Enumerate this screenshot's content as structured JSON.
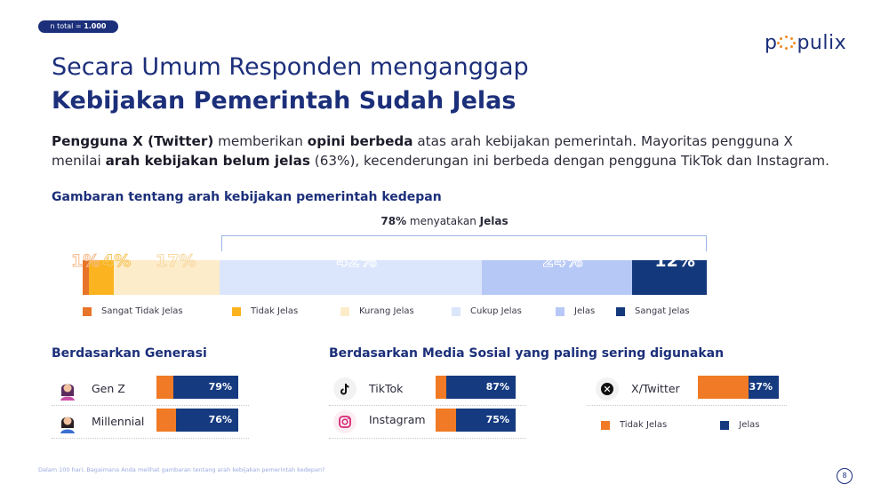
{
  "badge": {
    "prefix": "n total = ",
    "value": "1.000"
  },
  "logo": {
    "left": "p",
    "right": "pulix"
  },
  "title": {
    "line1": "Secara Umum Responden menganggap",
    "line2": "Kebijakan Pemerintah Sudah Jelas"
  },
  "paragraph": {
    "p1": "Pengguna X (Twitter)",
    "p2": " memberikan ",
    "p3": "opini berbeda",
    "p4": " atas arah kebijakan pemerintah. Mayoritas pengguna X menilai ",
    "p5": "arah kebijakan belum jelas",
    "p6": " (63%), kecenderungan ini berbeda dengan pengguna TikTok dan Instagram."
  },
  "section1": "Gambaran tentang arah kebijakan pemerintah kedepan",
  "note": {
    "pct": "78%",
    "mid": " menyatakan ",
    "word": "Jelas"
  },
  "colors": {
    "sangat_tidak": "#e8742a",
    "tidak": "#fbb41f",
    "kurang": "#fdecca",
    "cukup": "#dbe5fb",
    "jelas": "#b6c8f6",
    "sangat_jelas": "#13387c",
    "orange": "#f07a25",
    "navy": "#153a80"
  },
  "chart_data": [
    {
      "type": "bar",
      "stacked": true,
      "title": "Gambaran tentang arah kebijakan pemerintah kedepan",
      "categories": [
        "Sangat Tidak Jelas",
        "Tidak Jelas",
        "Kurang Jelas",
        "Cukup Jelas",
        "Jelas",
        "Sangat Jelas"
      ],
      "values": [
        1,
        4,
        17,
        42,
        24,
        12
      ],
      "labels": [
        "1%",
        "4%",
        "17%",
        "42%",
        "24%",
        "12%"
      ],
      "annotation": "78% menyatakan Jelas",
      "legend": "bottom"
    },
    {
      "type": "bar",
      "stacked": true,
      "title": "Berdasarkan Generasi",
      "categories": [
        "Gen Z",
        "Millennial"
      ],
      "series": [
        {
          "name": "Tidak Jelas",
          "values": [
            21,
            24
          ]
        },
        {
          "name": "Jelas",
          "values": [
            79,
            76
          ]
        }
      ],
      "labels": [
        "79%",
        "76%"
      ]
    },
    {
      "type": "bar",
      "stacked": true,
      "title": "Berdasarkan Media Sosial yang paling sering digunakan",
      "categories": [
        "TikTok",
        "Instagram",
        "X/Twitter"
      ],
      "series": [
        {
          "name": "Tidak Jelas",
          "values": [
            13,
            25,
            63
          ]
        },
        {
          "name": "Jelas",
          "values": [
            87,
            75,
            37
          ]
        }
      ],
      "labels": [
        "87%",
        "75%",
        "37%"
      ],
      "legend": "bottom"
    }
  ],
  "section_gen": "Berdasarkan Generasi",
  "section_media": "Berdasarkan Media Sosial yang paling sering digunakan",
  "legend_small": {
    "tidak": "Tidak Jelas",
    "jelas": "Jelas"
  },
  "footnote": "Dalam 100 hari, Bagaimana Anda melihat gambaran tentang arah kebijakan pemerintah kedepan?",
  "page_number": "8"
}
